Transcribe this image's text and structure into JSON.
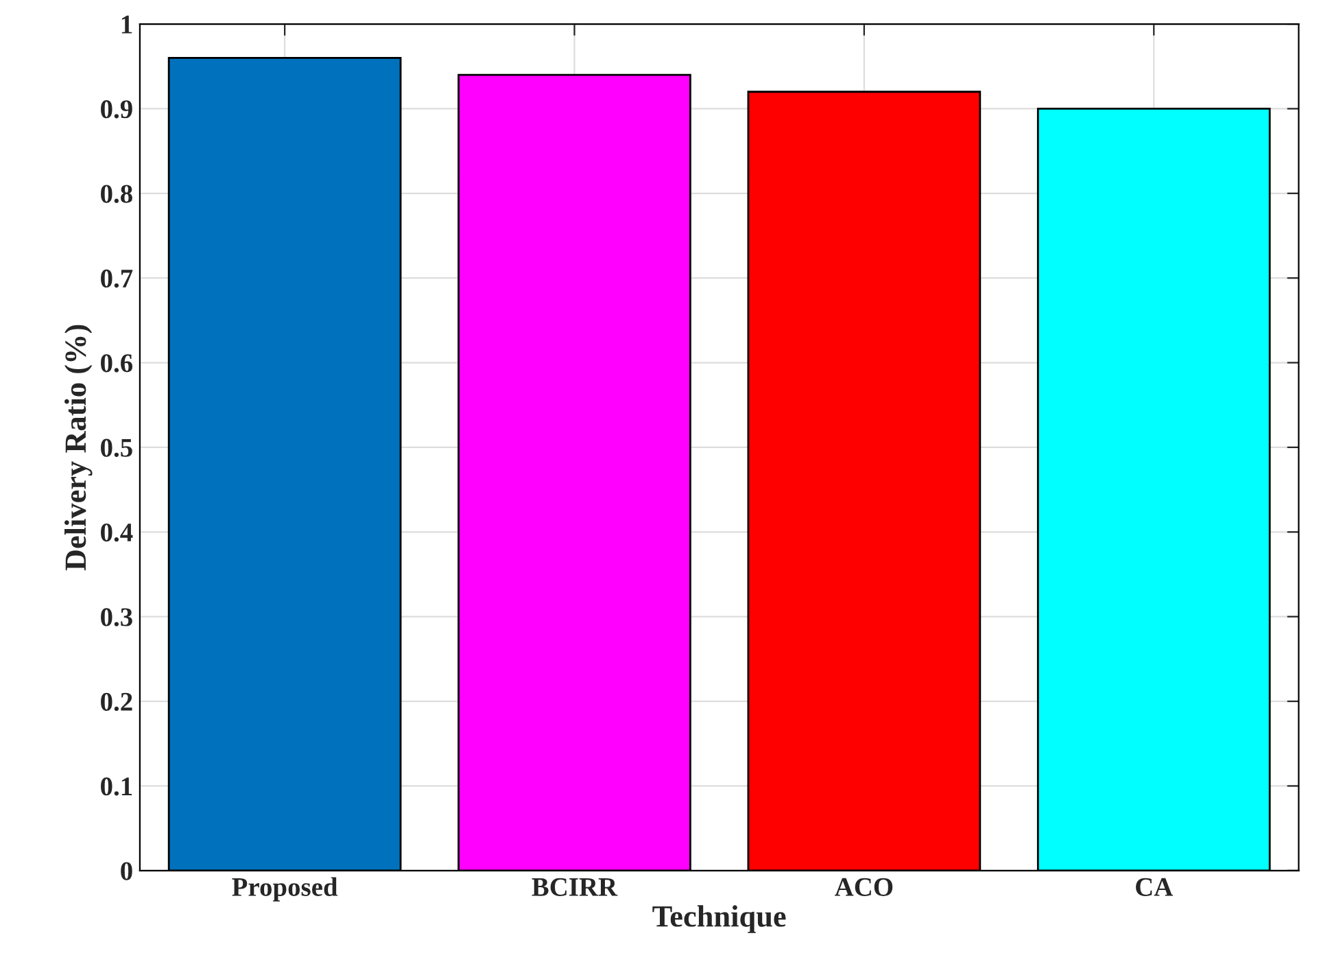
{
  "chart_data": {
    "type": "bar",
    "xlabel": "Technique",
    "ylabel": "Delivery Ratio (%)",
    "categories": [
      "Proposed",
      "BCIRR",
      "ACO",
      "CA"
    ],
    "values": [
      0.96,
      0.94,
      0.92,
      0.9
    ],
    "colors": [
      "#0072bd",
      "#ff00ff",
      "#ff0000",
      "#00ffff"
    ],
    "ylim": [
      0,
      1
    ],
    "yticks": [
      0,
      0.1,
      0.2,
      0.3,
      0.4,
      0.5,
      0.6,
      0.7,
      0.8,
      0.9,
      1
    ],
    "grid": true
  }
}
